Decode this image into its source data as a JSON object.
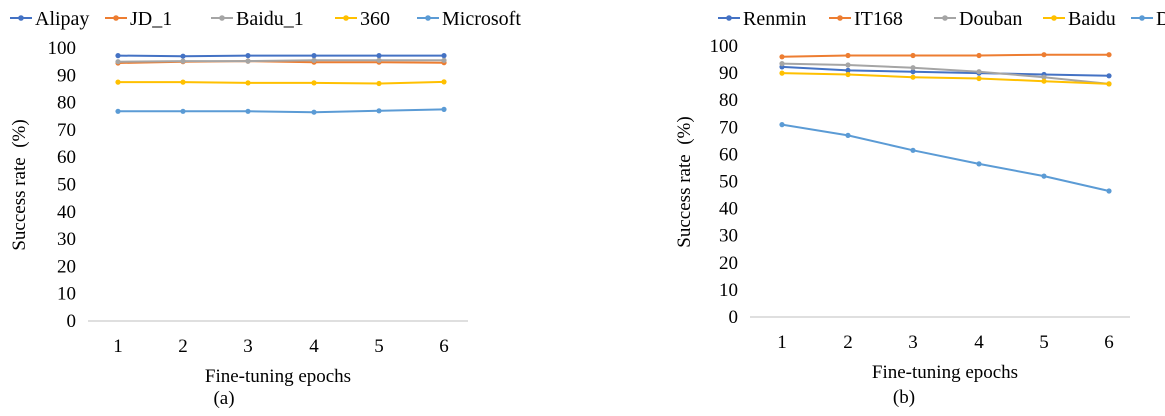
{
  "chart_data": [
    {
      "type": "line",
      "panel_label": "(a)",
      "xlabel": "Fine-tuning epochs",
      "ylabel": "Success rate  (%)",
      "x": [
        1,
        2,
        3,
        4,
        5,
        6
      ],
      "ylim": [
        0,
        100
      ],
      "yticks": [
        0,
        10,
        20,
        30,
        40,
        50,
        60,
        70,
        80,
        90,
        100
      ],
      "grid": false,
      "legend_position": "top",
      "series": [
        {
          "name": "Alipay",
          "color": "#4472c4",
          "values": [
            97.2,
            97.0,
            97.2,
            97.2,
            97.2,
            97.2
          ]
        },
        {
          "name": "JD_1",
          "color": "#ed7d31",
          "values": [
            94.5,
            95.0,
            95.2,
            94.8,
            94.8,
            94.6
          ]
        },
        {
          "name": "Baidu_1",
          "color": "#a5a5a5",
          "values": [
            95.0,
            95.2,
            95.2,
            95.5,
            95.5,
            95.5
          ]
        },
        {
          "name": "360",
          "color": "#ffc000",
          "values": [
            87.5,
            87.5,
            87.2,
            87.2,
            87.0,
            87.6
          ]
        },
        {
          "name": "Microsoft",
          "color": "#5b9bd5",
          "values": [
            76.8,
            76.8,
            76.8,
            76.5,
            77.0,
            77.5
          ]
        }
      ]
    },
    {
      "type": "line",
      "panel_label": "(b)",
      "xlabel": "Fine-tuning epochs",
      "ylabel": "Success rate  (%)",
      "x": [
        1,
        2,
        3,
        4,
        5,
        6
      ],
      "ylim": [
        0,
        100
      ],
      "yticks": [
        0,
        10,
        20,
        30,
        40,
        50,
        60,
        70,
        80,
        90,
        100
      ],
      "grid": false,
      "legend_position": "top",
      "series": [
        {
          "name": "Renmin",
          "color": "#4472c4",
          "values": [
            92.3,
            91.0,
            90.5,
            90.0,
            89.5,
            89.0
          ]
        },
        {
          "name": "IT168",
          "color": "#ed7d31",
          "values": [
            96.0,
            96.5,
            96.5,
            96.5,
            96.8,
            96.8
          ]
        },
        {
          "name": "Douban",
          "color": "#a5a5a5",
          "values": [
            93.5,
            93.0,
            92.0,
            90.5,
            88.5,
            86.0
          ]
        },
        {
          "name": "Baidu",
          "color": "#ffc000",
          "values": [
            90.0,
            89.5,
            88.5,
            88.0,
            87.0,
            86.0
          ]
        },
        {
          "name": "Dajie",
          "color": "#5b9bd5",
          "values": [
            71.0,
            67.0,
            61.5,
            56.5,
            52.0,
            46.5
          ]
        }
      ]
    }
  ]
}
